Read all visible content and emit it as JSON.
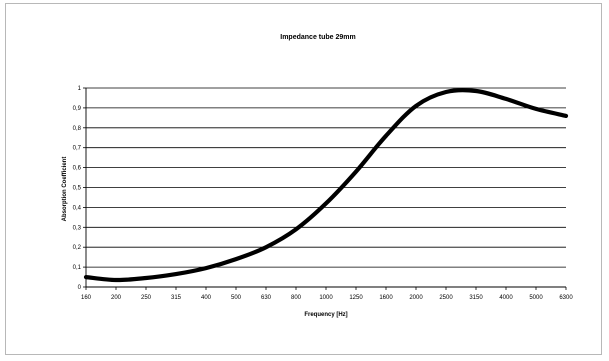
{
  "chart_data": {
    "type": "line",
    "title": "Impedance tube 29mm",
    "xlabel": "Frequency [Hz]",
    "ylabel": "Absorption Coefficient",
    "x": [
      "160",
      "200",
      "250",
      "315",
      "400",
      "500",
      "630",
      "800",
      "1000",
      "1250",
      "1600",
      "2000",
      "2500",
      "3150",
      "4000",
      "5000",
      "6300"
    ],
    "y_ticks": [
      "0",
      "0,1",
      "0,2",
      "0,3",
      "0,4",
      "0,5",
      "0,6",
      "0,7",
      "0,8",
      "0,9",
      "1"
    ],
    "ylim": [
      0,
      1
    ],
    "grid": true,
    "legend": "none",
    "series": [
      {
        "color": "#000000",
        "values": [
          0.05,
          0.035,
          0.045,
          0.065,
          0.095,
          0.14,
          0.2,
          0.29,
          0.42,
          0.58,
          0.76,
          0.91,
          0.98,
          0.985,
          0.945,
          0.895,
          0.86
        ]
      }
    ]
  }
}
